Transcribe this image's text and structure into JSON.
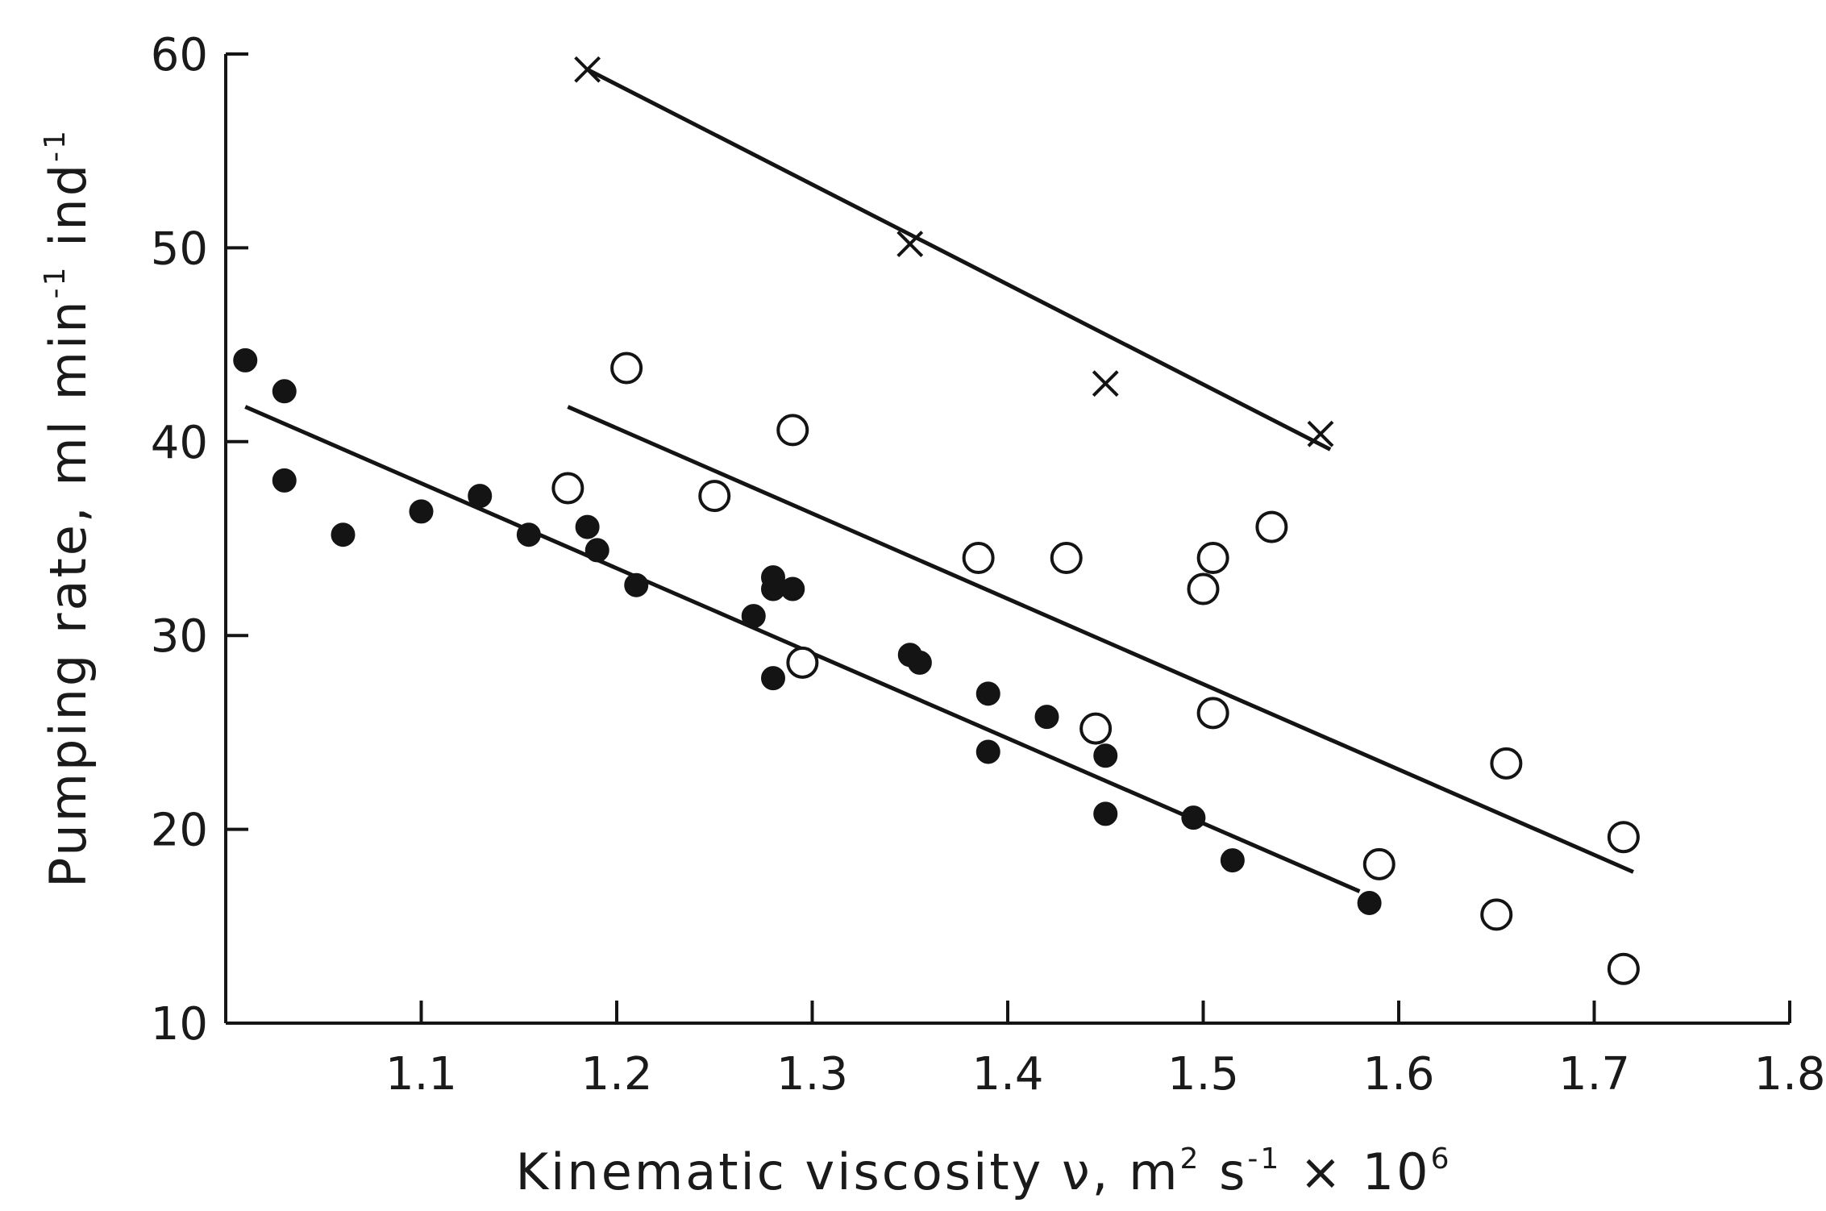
{
  "chart_data": {
    "type": "scatter",
    "title": "",
    "xlabel": {
      "main": "Kinematic viscosity ν, m",
      "exp2": "2",
      "mid": " s",
      "expneg1": "-1",
      "times": " × 10",
      "exp6": "6"
    },
    "ylabel": {
      "main": "Pumping rate,  ml min",
      "expneg1a": "-1",
      "mid": " ind",
      "expneg1b": "-1"
    },
    "xlim": [
      1.0,
      1.8
    ],
    "ylim": [
      10,
      60
    ],
    "x_tick_labels": [
      "1.1",
      "1.2",
      "1.3",
      "1.4",
      "1.5",
      "1.6",
      "1.7",
      "1.8"
    ],
    "y_tick_labels": [
      "10",
      "20",
      "30",
      "40",
      "50",
      "60"
    ],
    "grid": false,
    "legend": null,
    "series": [
      {
        "marker": "filled-circle",
        "points": [
          [
            1.01,
            44.2
          ],
          [
            1.03,
            42.6
          ],
          [
            1.03,
            38.0
          ],
          [
            1.06,
            35.2
          ],
          [
            1.1,
            36.4
          ],
          [
            1.13,
            37.2
          ],
          [
            1.155,
            35.2
          ],
          [
            1.185,
            35.6
          ],
          [
            1.19,
            34.4
          ],
          [
            1.21,
            32.6
          ],
          [
            1.27,
            31.0
          ],
          [
            1.28,
            33.0
          ],
          [
            1.28,
            32.4
          ],
          [
            1.29,
            32.4
          ],
          [
            1.28,
            27.8
          ],
          [
            1.35,
            29.0
          ],
          [
            1.355,
            28.6
          ],
          [
            1.39,
            27.0
          ],
          [
            1.39,
            24.0
          ],
          [
            1.42,
            25.8
          ],
          [
            1.45,
            23.8
          ],
          [
            1.45,
            20.8
          ],
          [
            1.495,
            20.6
          ],
          [
            1.515,
            18.4
          ],
          [
            1.585,
            16.2
          ]
        ],
        "fit": {
          "x": [
            1.01,
            1.58
          ],
          "y": [
            41.8,
            16.8
          ]
        }
      },
      {
        "marker": "open-circle",
        "points": [
          [
            1.175,
            37.6
          ],
          [
            1.205,
            43.8
          ],
          [
            1.25,
            37.2
          ],
          [
            1.29,
            40.6
          ],
          [
            1.295,
            28.6
          ],
          [
            1.385,
            34.0
          ],
          [
            1.43,
            34.0
          ],
          [
            1.445,
            25.2
          ],
          [
            1.5,
            32.4
          ],
          [
            1.505,
            34.0
          ],
          [
            1.505,
            26.0
          ],
          [
            1.535,
            35.6
          ],
          [
            1.59,
            18.2
          ],
          [
            1.65,
            15.6
          ],
          [
            1.655,
            23.4
          ],
          [
            1.715,
            19.6
          ],
          [
            1.715,
            12.8
          ]
        ],
        "fit": {
          "x": [
            1.175,
            1.72
          ],
          "y": [
            41.8,
            17.8
          ]
        }
      },
      {
        "marker": "cross",
        "points": [
          [
            1.185,
            59.2
          ],
          [
            1.35,
            50.2
          ],
          [
            1.45,
            43.0
          ],
          [
            1.56,
            40.4
          ]
        ],
        "fit": {
          "x": [
            1.185,
            1.565
          ],
          "y": [
            59.2,
            39.6
          ]
        }
      }
    ]
  }
}
